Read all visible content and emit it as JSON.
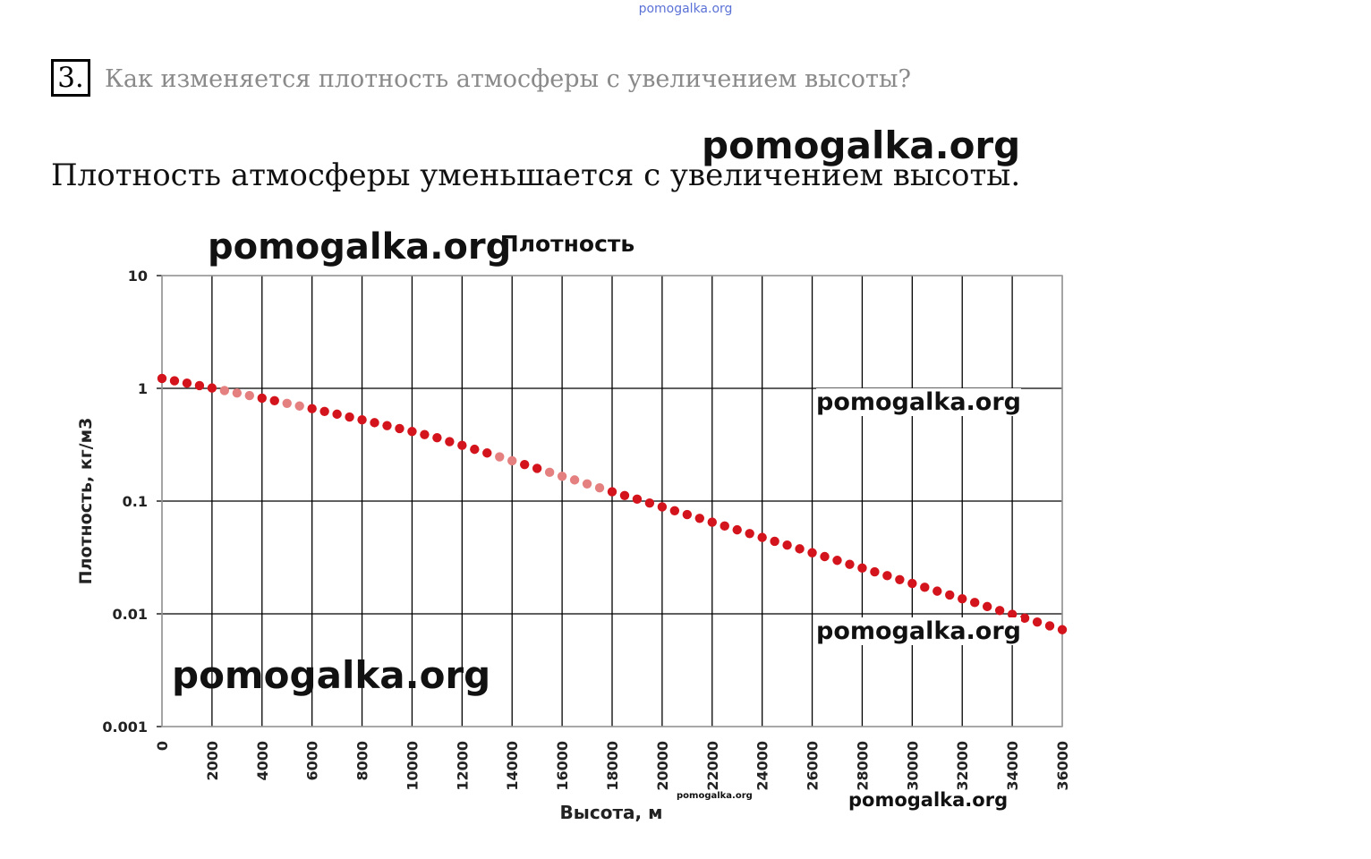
{
  "header": {
    "watermark": "pomogalka.org"
  },
  "question": {
    "number": "3.",
    "text": "Как изменяется плотность атмосферы с увеличением высоты?"
  },
  "answer": {
    "text": "Плотность атмосферы уменьшается с увеличением высоты."
  },
  "watermarks": [
    "pomogalka.org",
    "pomogalka.org",
    "pomogalka.org",
    "pomogalka.org",
    "pomogalka.org",
    "pomogalka.org",
    "pomogalka.org"
  ],
  "colors": {
    "marker": "#d4141c",
    "marker_faded": "#e58080",
    "grid": "#000000",
    "plot_border": "#a0a0a0"
  },
  "chart_data": {
    "type": "scatter",
    "title": "Плотность",
    "xlabel": "Высота, м",
    "ylabel": "Плотность, кг/м3",
    "yscale": "log",
    "xlim": [
      0,
      36000
    ],
    "ylim": [
      0.001,
      10
    ],
    "x_ticks": [
      "0",
      "2000",
      "4000",
      "6000",
      "8000",
      "10000",
      "12000",
      "14000",
      "16000",
      "18000",
      "20000",
      "22000",
      "24000",
      "26000",
      "28000",
      "30000",
      "32000",
      "34000",
      "36000"
    ],
    "y_ticks": [
      "10",
      "1",
      "0.1",
      "0.01",
      "0.001"
    ],
    "grid": true,
    "legend": "none",
    "series": [
      {
        "x": [
          0,
          500,
          1000,
          1500,
          2000,
          2500,
          3000,
          3500,
          4000,
          4500,
          5000,
          5500,
          6000,
          6500,
          7000,
          7500,
          8000,
          8500,
          9000,
          9500,
          10000,
          10500,
          11000,
          11500,
          12000,
          12500,
          13000,
          13500,
          14000,
          14500,
          15000,
          15500,
          16000,
          16500,
          17000,
          17500,
          18000,
          18500,
          19000,
          19500,
          20000,
          20500,
          21000,
          21500,
          22000,
          22500,
          23000,
          23500,
          24000,
          24500,
          25000,
          25500,
          26000,
          26500,
          27000,
          27500,
          28000,
          28500,
          29000,
          29500,
          30000,
          30500,
          31000,
          31500,
          32000,
          32500,
          33000,
          33500,
          34000,
          34500,
          35000,
          35500,
          36000
        ],
        "y": [
          1.225,
          1.167,
          1.112,
          1.058,
          1.007,
          0.957,
          0.909,
          0.863,
          0.819,
          0.777,
          0.736,
          0.697,
          0.66,
          0.624,
          0.59,
          0.557,
          0.526,
          0.496,
          0.467,
          0.44,
          0.414,
          0.389,
          0.365,
          0.337,
          0.312,
          0.288,
          0.267,
          0.247,
          0.228,
          0.211,
          0.195,
          0.18,
          0.166,
          0.154,
          0.142,
          0.131,
          0.121,
          0.112,
          0.104,
          0.0961,
          0.0889,
          0.0821,
          0.076,
          0.0703,
          0.065,
          0.0601,
          0.0556,
          0.0515,
          0.0476,
          0.044,
          0.0407,
          0.0377,
          0.0348,
          0.0322,
          0.0298,
          0.0275,
          0.0255,
          0.0236,
          0.0218,
          0.0201,
          0.0186,
          0.0172,
          0.0159,
          0.0147,
          0.0136,
          0.0126,
          0.0116,
          0.0107,
          0.0099,
          0.00915,
          0.00846,
          0.00782,
          0.00723
        ]
      }
    ]
  }
}
